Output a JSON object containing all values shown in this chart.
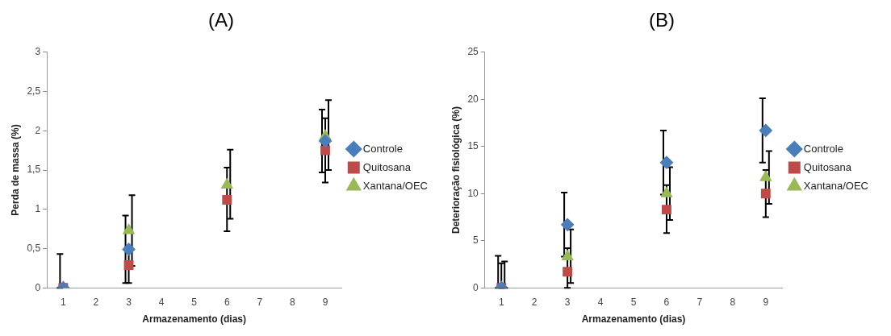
{
  "chart_data": [
    {
      "type": "scatter",
      "title": "(A)",
      "xlabel": "Armazenamento (dias)",
      "ylabel": "Perda de massa (%)",
      "categories": [
        "1",
        "2",
        "3",
        "4",
        "5",
        "6",
        "7",
        "8",
        "9"
      ],
      "ylim": [
        0,
        3
      ],
      "yticks": [
        0,
        {
          "value": 0.5,
          "label": "0,5"
        },
        1,
        {
          "value": 1.5,
          "label": "1,5"
        },
        2,
        {
          "value": 2.5,
          "label": "2,5"
        },
        3
      ],
      "grid": false,
      "legend": "right",
      "series": [
        {
          "name": "Controle",
          "color": "#4a7ebb",
          "marker": "diamond",
          "values": [
            0,
            null,
            0.49,
            null,
            null,
            null,
            null,
            null,
            1.87
          ],
          "errors": [
            [
              0,
              0.43
            ],
            null,
            [
              0.06,
              0.92
            ],
            null,
            null,
            null,
            null,
            null,
            [
              1.47,
              2.27
            ]
          ]
        },
        {
          "name": "Quitosana",
          "color": "#be4b48",
          "marker": "square",
          "values": [
            0,
            null,
            0.29,
            null,
            null,
            1.12,
            null,
            null,
            1.75
          ],
          "errors": [
            null,
            null,
            [
              0.06,
              0.52
            ],
            null,
            null,
            [
              0.72,
              1.53
            ],
            null,
            null,
            [
              1.34,
              2.16
            ]
          ]
        },
        {
          "name": "Xantana/OEC",
          "color": "#98b954",
          "marker": "triangle",
          "values": [
            0,
            null,
            0.73,
            null,
            null,
            1.31,
            null,
            null,
            1.93
          ],
          "errors": [
            null,
            null,
            [
              0.28,
              1.18
            ],
            null,
            null,
            [
              0.88,
              1.76
            ],
            null,
            null,
            [
              1.5,
              2.39
            ]
          ]
        }
      ]
    },
    {
      "type": "scatter",
      "title": "(B)",
      "xlabel": "Armazenamento (dias)",
      "ylabel": "Deterioração fisiológica (%)",
      "categories": [
        "1",
        "2",
        "3",
        "4",
        "5",
        "6",
        "7",
        "8",
        "9"
      ],
      "ylim": [
        0,
        25
      ],
      "yticks": [
        0,
        5,
        10,
        15,
        20,
        25
      ],
      "grid": false,
      "legend": "right",
      "series": [
        {
          "name": "Controle",
          "color": "#4a7ebb",
          "marker": "diamond",
          "values": [
            0,
            null,
            6.7,
            null,
            null,
            13.3,
            null,
            null,
            16.7
          ],
          "errors": [
            [
              0,
              3.4
            ],
            null,
            [
              3.3,
              10.1
            ],
            null,
            null,
            [
              9.9,
              16.7
            ],
            null,
            null,
            [
              13.3,
              20.1
            ]
          ]
        },
        {
          "name": "Quitosana",
          "color": "#be4b48",
          "marker": "square",
          "values": [
            0,
            null,
            1.7,
            null,
            null,
            8.3,
            null,
            null,
            10
          ],
          "errors": [
            [
              0,
              2.6
            ],
            null,
            [
              0,
              4.2
            ],
            null,
            null,
            [
              5.8,
              10.9
            ],
            null,
            null,
            [
              7.5,
              12.5
            ]
          ]
        },
        {
          "name": "Xantana/OEC",
          "color": "#98b954",
          "marker": "triangle",
          "values": [
            0,
            null,
            3.3,
            null,
            null,
            10,
            null,
            null,
            11.7
          ],
          "errors": [
            [
              0,
              2.8
            ],
            null,
            [
              0.5,
              6.2
            ],
            null,
            null,
            [
              7.2,
              12.8
            ],
            null,
            null,
            [
              8.9,
              14.5
            ]
          ]
        }
      ]
    }
  ]
}
